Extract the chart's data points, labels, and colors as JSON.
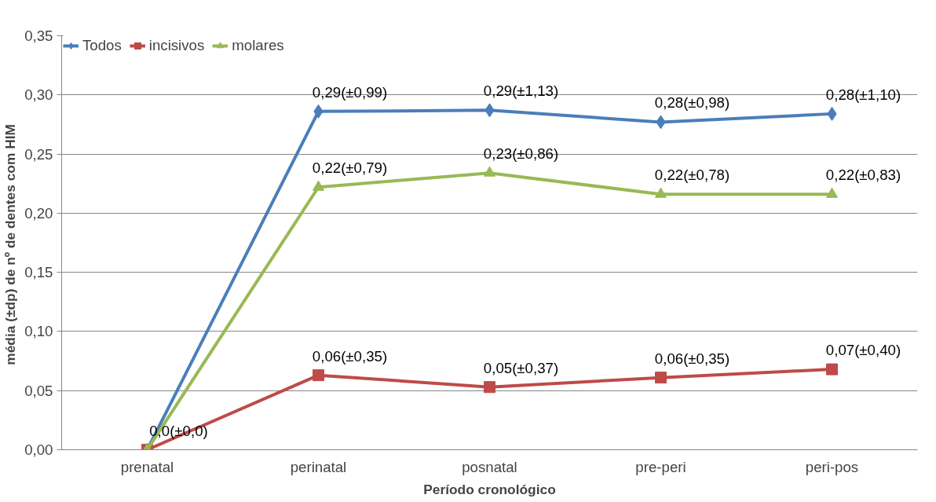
{
  "chart_data": {
    "type": "line",
    "xlabel": "Período cronológico",
    "ylabel": "média (±dp)  de nº de dentes com HIM",
    "categories": [
      "prenatal",
      "perinatal",
      "posnatal",
      "pre-peri",
      "peri-pos"
    ],
    "series": [
      {
        "name": "Todos",
        "color": "#4a7ebb",
        "marker": "diamond",
        "values": [
          0,
          0.286,
          0.287,
          0.277,
          0.284
        ],
        "value_labels": [
          null,
          "0,29(±0,99)",
          "0,29(±1,13)",
          "0,28(±0,98)",
          "0,28(±1,10)"
        ]
      },
      {
        "name": "incisivos",
        "color": "#be4b48",
        "marker": "square",
        "values": [
          0,
          0.063,
          0.053,
          0.061,
          0.068
        ],
        "value_labels": [
          "0,0(±0,0)",
          "0,06(±0,35)",
          "0,05(±0,37)",
          "0,06(±0,35)",
          "0,07(±0,40)"
        ]
      },
      {
        "name": "molares",
        "color": "#98b954",
        "marker": "triangle",
        "values": [
          0,
          0.222,
          0.234,
          0.216,
          0.216
        ],
        "value_labels": [
          null,
          "0,22(±0,79)",
          "0,23(±0,86)",
          "0,22(±0,78)",
          "0,22(±0,83)"
        ]
      }
    ],
    "ylim": [
      0,
      0.35
    ],
    "yticks": [
      {
        "value": 0,
        "label": "0,00"
      },
      {
        "value": 0.05,
        "label": "0,05"
      },
      {
        "value": 0.1,
        "label": "0,10"
      },
      {
        "value": 0.15,
        "label": "0,15"
      },
      {
        "value": 0.2,
        "label": "0,20"
      },
      {
        "value": 0.25,
        "label": "0,25"
      },
      {
        "value": 0.3,
        "label": "0,30"
      },
      {
        "value": 0.35,
        "label": "0,35"
      }
    ],
    "grid": "y",
    "legend": "top left",
    "line_style": "solid"
  }
}
